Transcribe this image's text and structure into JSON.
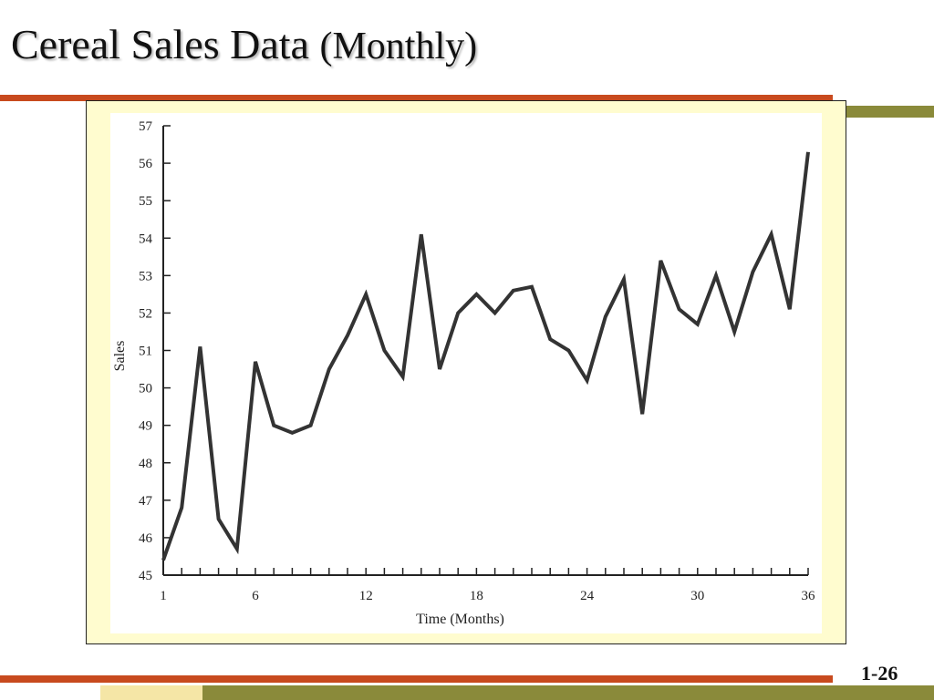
{
  "slide": {
    "title": "Cereal Sales Data",
    "title_suffix": "(Monthly)",
    "page_number": "1-26"
  },
  "colors": {
    "accent_orange": "#c84a1e",
    "accent_olive": "#8a8a3a",
    "accent_cream": "#f5e6a6",
    "chart_frame": "#fffccf",
    "series_line": "#333333"
  },
  "chart_data": {
    "type": "line",
    "title": "",
    "xlabel": "Time (Months)",
    "ylabel": "Sales",
    "xlim": [
      1,
      36
    ],
    "ylim": [
      45,
      57
    ],
    "x_ticks": [
      1,
      6,
      12,
      18,
      24,
      30,
      36
    ],
    "y_ticks": [
      45,
      46,
      47,
      48,
      49,
      50,
      51,
      52,
      53,
      54,
      55,
      56,
      57
    ],
    "grid": false,
    "legend": "none",
    "series": [
      {
        "x": [
          1,
          2,
          3,
          4,
          5,
          6,
          7,
          8,
          9,
          10,
          11,
          12,
          13,
          14,
          15,
          16,
          17,
          18,
          19,
          20,
          21,
          22,
          23,
          24,
          25,
          26,
          27,
          28,
          29,
          30,
          31,
          32,
          33,
          34,
          35,
          36
        ],
        "values": [
          45.4,
          46.8,
          51.1,
          46.5,
          45.7,
          50.7,
          49.0,
          48.8,
          49.0,
          50.5,
          51.4,
          52.5,
          51.0,
          50.3,
          54.1,
          50.5,
          52.0,
          52.5,
          52.0,
          52.6,
          52.7,
          51.3,
          51.0,
          50.2,
          51.9,
          52.9,
          49.3,
          53.4,
          52.1,
          51.7,
          53.0,
          51.5,
          53.1,
          54.1,
          52.1,
          56.3
        ]
      }
    ]
  }
}
